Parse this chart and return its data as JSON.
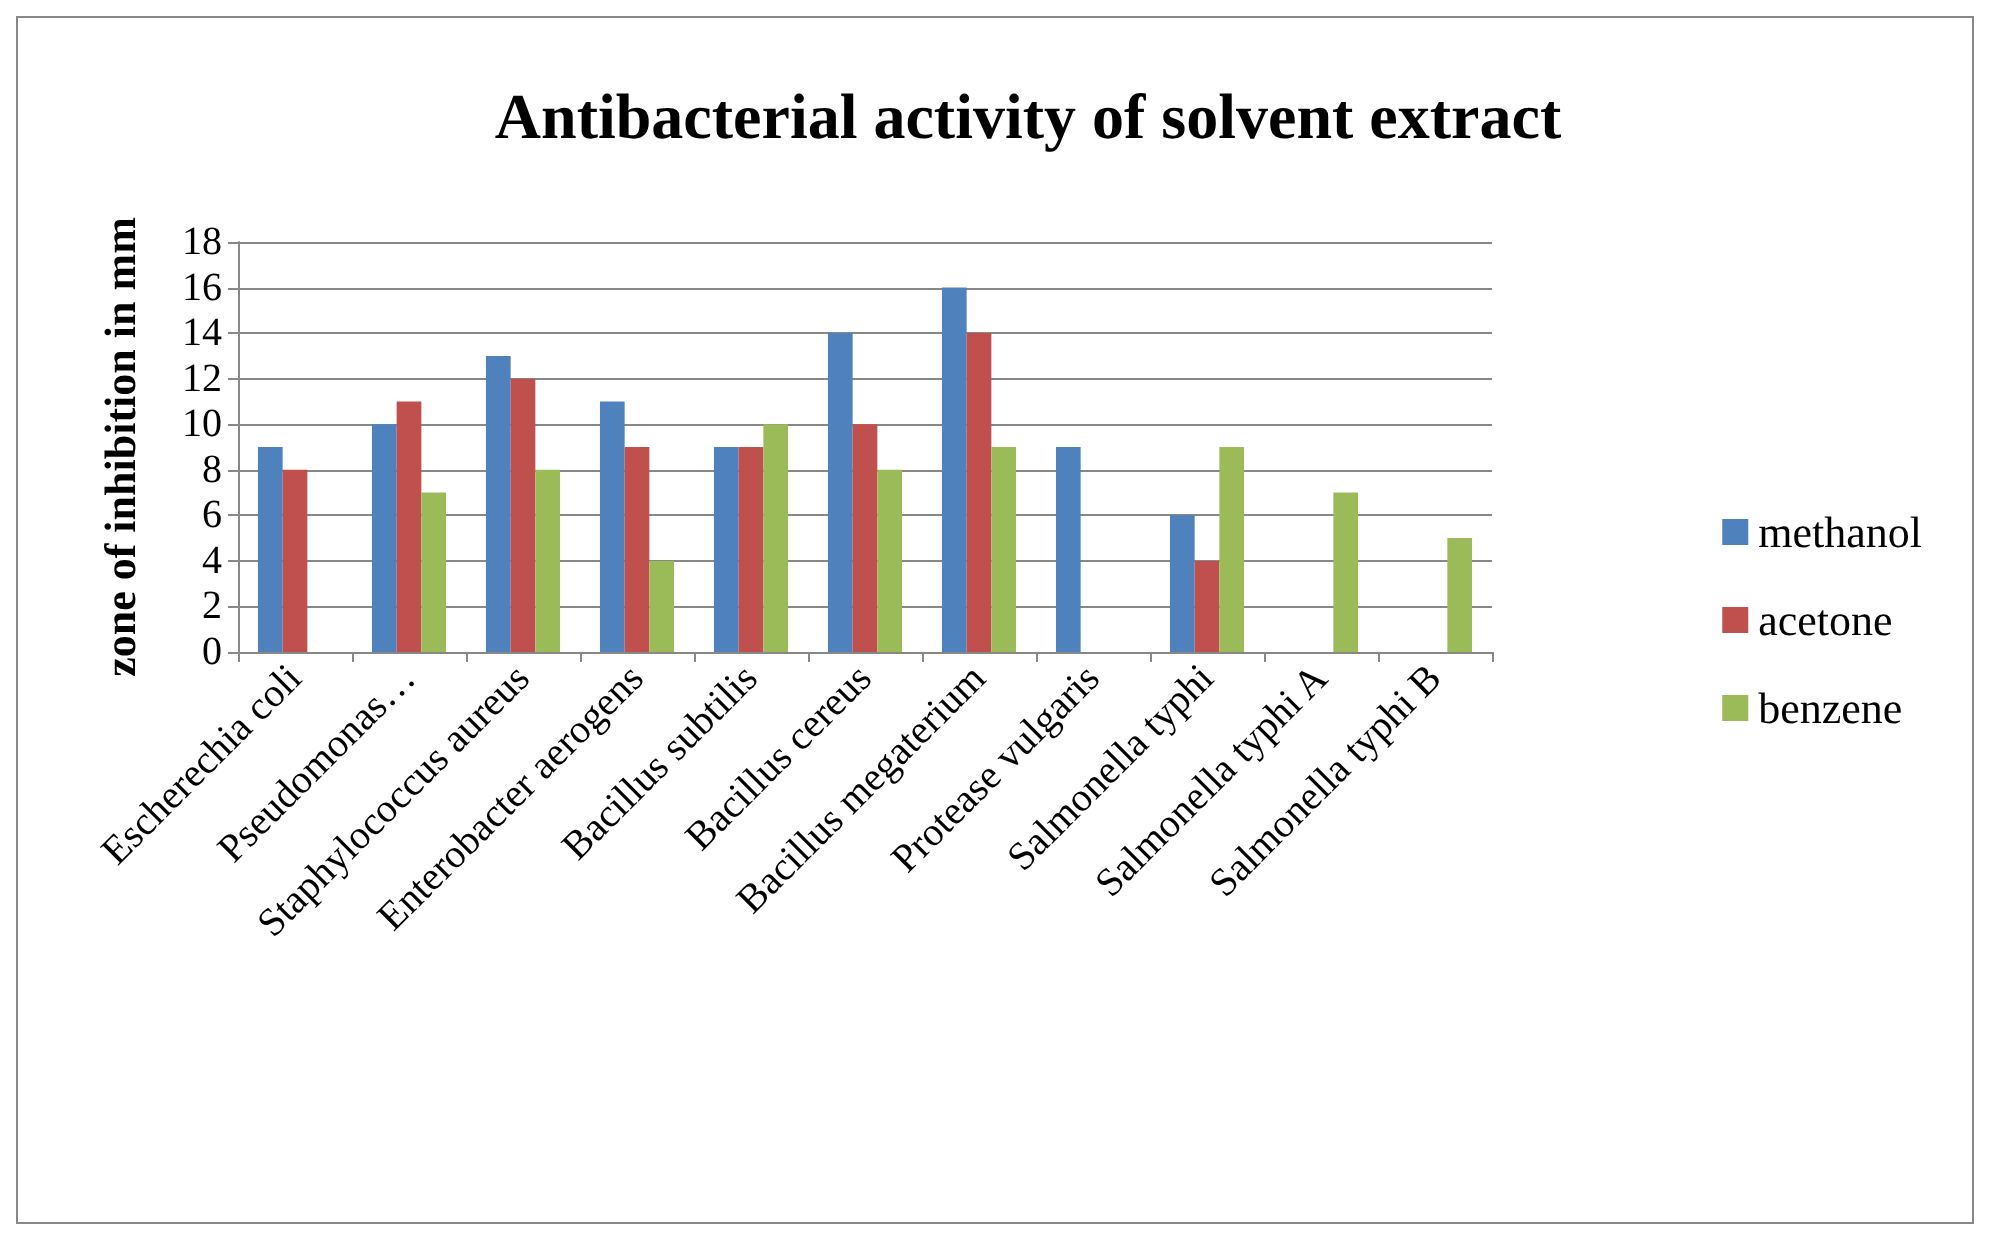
{
  "chart_data": {
    "type": "bar",
    "title": "Antibacterial activity of solvent extract",
    "ylabel": "zone of inhibition in mm",
    "categories": [
      "Escherechia coli",
      "Pseudomonas…",
      "Staphylococcus aureus",
      "Enterobacter aerogens",
      "Bacillus subtilis",
      "Bacillus cereus",
      "Bacillus megaterium",
      "Protease vulgaris",
      "Salmonella typhi",
      "Salmonella typhi A",
      "Salmonella typhi B"
    ],
    "series": [
      {
        "name": "methanol",
        "color": "#4f81bd",
        "values": [
          9,
          10,
          13,
          11,
          9,
          14,
          16,
          9,
          6,
          null,
          null
        ]
      },
      {
        "name": "acetone",
        "color": "#c0504d",
        "values": [
          8,
          11,
          12,
          9,
          9,
          10,
          14,
          null,
          4,
          null,
          null
        ]
      },
      {
        "name": "benzene",
        "color": "#9bbb59",
        "values": [
          null,
          7,
          8,
          4,
          10,
          8,
          9,
          null,
          9,
          7,
          5
        ]
      }
    ],
    "ylim": [
      0,
      18
    ],
    "yticks": [
      0,
      2,
      4,
      6,
      8,
      10,
      12,
      14,
      16,
      18
    ],
    "grid": "y",
    "legend": "right"
  }
}
